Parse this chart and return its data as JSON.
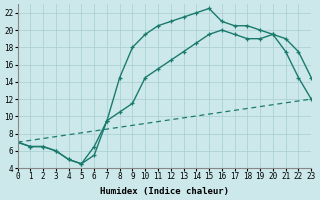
{
  "bg_color": "#cce8ea",
  "grid_color": "#a8cdd0",
  "line_color": "#1a7a6e",
  "xlabel": "Humidex (Indice chaleur)",
  "curve1_x": [
    0,
    1,
    2,
    3,
    4,
    5,
    6,
    7,
    8,
    9,
    10,
    11,
    12,
    13,
    14,
    15,
    16,
    17,
    18,
    19,
    20,
    21,
    22,
    23
  ],
  "curve1_y": [
    7.0,
    6.5,
    6.5,
    6.0,
    5.0,
    4.5,
    5.5,
    9.5,
    14.5,
    18.0,
    19.5,
    20.5,
    21.0,
    21.5,
    22.0,
    22.5,
    21.0,
    20.5,
    20.5,
    20.0,
    19.5,
    17.5,
    14.5,
    12.0
  ],
  "curve2_x": [
    0,
    1,
    2,
    3,
    4,
    5,
    6,
    7,
    8,
    9,
    10,
    11,
    12,
    13,
    14,
    15,
    16,
    17,
    18,
    19,
    20,
    21,
    22,
    23
  ],
  "curve2_y": [
    7.0,
    6.5,
    6.5,
    6.0,
    5.0,
    4.5,
    6.5,
    9.5,
    10.5,
    11.5,
    14.5,
    15.5,
    16.5,
    17.5,
    18.5,
    19.5,
    20.0,
    19.5,
    19.0,
    19.0,
    19.5,
    19.0,
    17.5,
    14.5
  ],
  "curve3_x": [
    0,
    23
  ],
  "curve3_y": [
    7.0,
    12.0
  ],
  "xlim": [
    0,
    23
  ],
  "ylim": [
    4,
    23
  ],
  "xticks": [
    0,
    1,
    2,
    3,
    4,
    5,
    6,
    7,
    8,
    9,
    10,
    11,
    12,
    13,
    14,
    15,
    16,
    17,
    18,
    19,
    20,
    21,
    22,
    23
  ],
  "yticks": [
    4,
    6,
    8,
    10,
    12,
    14,
    16,
    18,
    20,
    22
  ],
  "tick_fontsize": 5.5,
  "xlabel_fontsize": 6.5
}
